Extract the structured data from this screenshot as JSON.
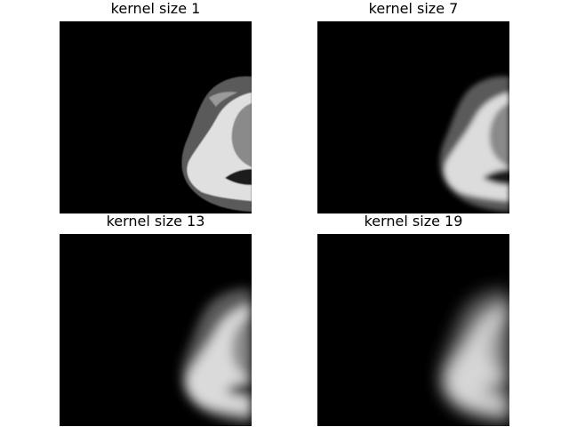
{
  "figure": {
    "background": "#ffffff",
    "panels": [
      {
        "title": "kernel size 1",
        "blur": 0.6
      },
      {
        "title": "kernel size 7",
        "blur": 3
      },
      {
        "title": "kernel size 13",
        "blur": 6
      },
      {
        "title": "kernel size 19",
        "blur": 9
      }
    ]
  }
}
